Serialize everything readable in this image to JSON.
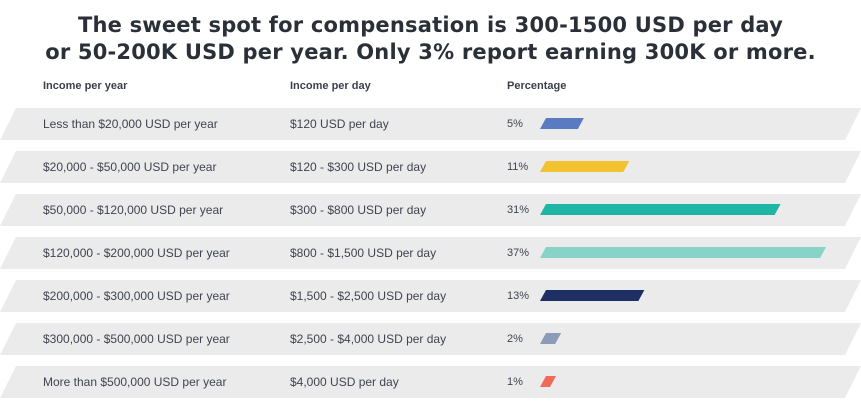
{
  "title_line1": "The sweet spot for compensation is 300-1500 USD per day",
  "title_line2": "or 50-200K USD per year. Only 3% report earning 300K or more.",
  "headers": {
    "year": "Income per year",
    "day": "Income per day",
    "percentage": "Percentage"
  },
  "colors": {
    "row_background": "#ebebeb"
  },
  "chart_data": {
    "type": "bar",
    "orientation": "horizontal",
    "title": "The sweet spot for compensation is 300-1500 USD per day or 50-200K USD per year. Only 3% report earning 300K or more.",
    "categories": [
      "Less than $20,000 USD per year",
      "$20,000 - $50,000 USD per year",
      "$50,000 - $120,000 USD per year",
      "$120,000 - $200,000 USD per year",
      "$200,000 - $300,000 USD per year",
      "$300,000 - $500,000 USD per year",
      "More than $500,000 USD per year"
    ],
    "values": [
      5,
      11,
      31,
      37,
      13,
      2,
      1
    ],
    "grid": false,
    "legend": "none",
    "rows": [
      {
        "year": "Less than $20,000 USD per year",
        "day": "$120 USD per day",
        "label": "5%",
        "value": 5,
        "color": "#5b7bc0"
      },
      {
        "year": "$20,000 - $50,000 USD per year",
        "day": "$120 - $300 USD per day",
        "label": "11%",
        "value": 11,
        "color": "#f2c230"
      },
      {
        "year": "$50,000 - $120,000 USD per year",
        "day": "$300 - $800 USD per day",
        "label": "31%",
        "value": 31,
        "color": "#1fb5a5"
      },
      {
        "year": "$120,000 - $200,000 USD per year",
        "day": "$800 - $1,500 USD per day",
        "label": "37%",
        "value": 37,
        "color": "#87d3c8"
      },
      {
        "year": "$200,000 - $300,000 USD per year",
        "day": "$1,500 - $2,500 USD per day",
        "label": "13%",
        "value": 13,
        "color": "#1d2f63"
      },
      {
        "year": "$300,000 - $500,000 USD per year",
        "day": "$2,500 - $4,000 USD per day",
        "label": "2%",
        "value": 2,
        "color": "#8c9bb7"
      },
      {
        "year": "More than $500,000 USD per year",
        "day": "$4,000 USD per day",
        "label": "1%",
        "value": 1,
        "color": "#f06a5b"
      }
    ]
  }
}
